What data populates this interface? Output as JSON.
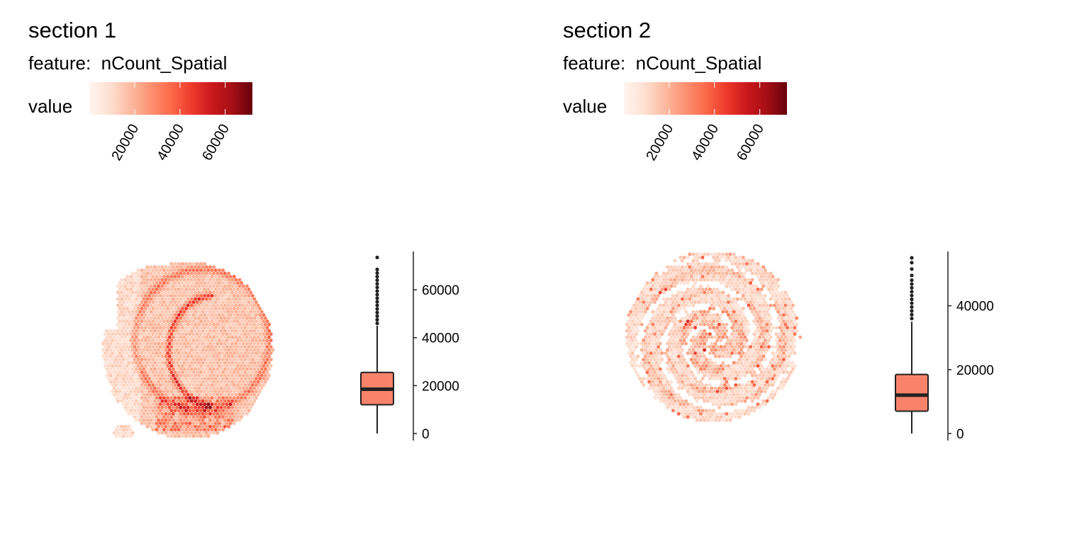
{
  "colors": {
    "scale": [
      "#FFF5F0",
      "#FEE0D2",
      "#FCBBA1",
      "#FC9272",
      "#FB6A4A",
      "#EF3B2C",
      "#CB181D",
      "#A50F15",
      "#67000D"
    ],
    "box_fill": "#F8836A",
    "box_line": "#222222"
  },
  "panels": [
    {
      "title": "section 1",
      "feature_label": "feature:",
      "feature_name": "nCount_Spatial",
      "legend_title": "value",
      "legend_ticks": [
        "20000",
        "40000",
        "60000"
      ],
      "shape": "brain-coronal",
      "chart_data": {
        "type": "boxplot",
        "feature": "nCount_Spatial",
        "colorbar": {
          "range": [
            0,
            72000
          ],
          "ticks": [
            20000,
            40000,
            60000
          ]
        },
        "y_ticks": [
          0,
          20000,
          40000,
          60000
        ],
        "y_tick_labels": [
          "0",
          "20000",
          "40000",
          "60000"
        ],
        "ylim": [
          0,
          76000
        ],
        "box": {
          "min": 0,
          "q1": 12000,
          "median": 18500,
          "q3": 25500,
          "whisker_high": 45000
        },
        "outliers": [
          46000,
          47500,
          49000,
          50500,
          52000,
          53500,
          55000,
          56500,
          58000,
          59500,
          61000,
          62500,
          64000,
          65500,
          67000,
          68500,
          73500
        ]
      }
    },
    {
      "title": "section 2",
      "feature_label": "feature:",
      "feature_name": "nCount_Spatial",
      "legend_title": "value",
      "legend_ticks": [
        "20000",
        "40000",
        "60000"
      ],
      "shape": "organoid-round",
      "chart_data": {
        "type": "boxplot",
        "feature": "nCount_Spatial",
        "colorbar": {
          "range": [
            0,
            72000
          ],
          "ticks": [
            20000,
            40000,
            60000
          ]
        },
        "y_ticks": [
          0,
          20000,
          40000
        ],
        "y_tick_labels": [
          "0",
          "20000",
          "40000"
        ],
        "ylim": [
          0,
          57000
        ],
        "box": {
          "min": 0,
          "q1": 7000,
          "median": 12000,
          "q3": 18500,
          "whisker_high": 35000
        },
        "outliers": [
          36000,
          37200,
          38400,
          39600,
          40800,
          42000,
          43200,
          44400,
          45600,
          46800,
          48000,
          49500,
          51500,
          53500,
          55000
        ]
      }
    }
  ]
}
